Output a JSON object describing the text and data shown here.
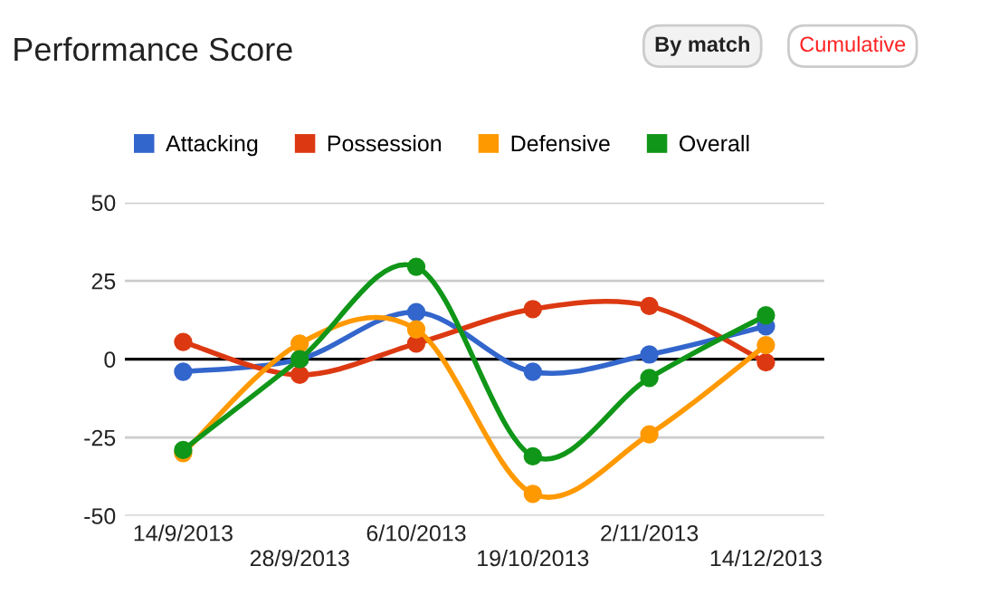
{
  "chart_data": {
    "type": "line",
    "title": "Performance Score",
    "annotations": [
      "By match",
      "Cumulative"
    ],
    "categories": [
      "14/9/2013",
      "28/9/2013",
      "6/10/2013",
      "19/10/2013",
      "2/11/2013",
      "14/12/2013"
    ],
    "series": [
      {
        "name": "Attacking",
        "color": "#3366cc",
        "values": [
          -4,
          0,
          15,
          -4,
          1.5,
          10.5
        ]
      },
      {
        "name": "Possession",
        "color": "#dc3912",
        "values": [
          5.5,
          -5,
          5,
          16,
          17,
          -1
        ]
      },
      {
        "name": "Defensive",
        "color": "#ff9900",
        "values": [
          -30,
          5,
          9.5,
          -43,
          -24,
          4.5
        ]
      },
      {
        "name": "Overall",
        "color": "#109618",
        "values": [
          -29,
          0,
          29.5,
          -31,
          -6,
          14
        ]
      }
    ],
    "ylim": [
      -50,
      50
    ],
    "yticks": [
      -50,
      -25,
      0,
      25,
      50
    ],
    "grid": "y",
    "legend": "top",
    "marker": "circle",
    "line_style": "solid",
    "ref_lines": [
      {
        "axis": "y",
        "value": 0,
        "color": "#000000"
      }
    ]
  }
}
